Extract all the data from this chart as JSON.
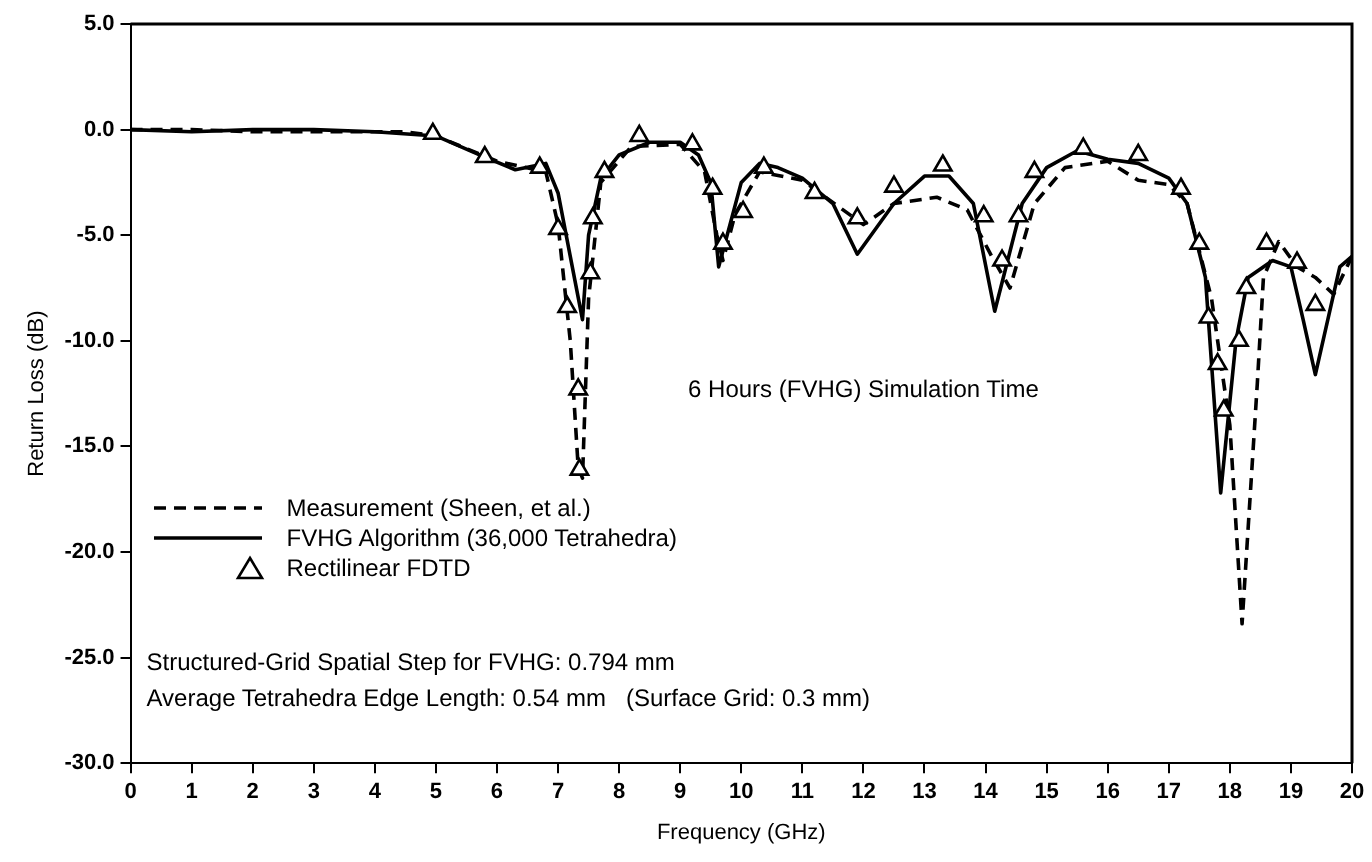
{
  "chart_data": {
    "type": "line",
    "xlabel": "Frequency (GHz)",
    "ylabel": "Return Loss (dB)",
    "xlim": [
      0,
      20
    ],
    "xticks": [
      0,
      1,
      2,
      3,
      4,
      5,
      6,
      7,
      8,
      9,
      10,
      11,
      12,
      13,
      14,
      15,
      16,
      17,
      18,
      19,
      20
    ],
    "ylim": [
      -30,
      5
    ],
    "yticks": [
      {
        "value": 5,
        "label": "5.0"
      },
      {
        "value": 0,
        "label": "0.0"
      },
      {
        "value": -5,
        "label": "-5.0"
      },
      {
        "value": -10,
        "label": "-10.0"
      },
      {
        "value": -15,
        "label": "-15.0"
      },
      {
        "value": -20,
        "label": "-20.0"
      },
      {
        "value": -25,
        "label": "-25.0"
      },
      {
        "value": -30,
        "label": "-30.0"
      }
    ],
    "grid": false,
    "legend": "bottom left",
    "series": [
      {
        "name": "Measurement (Sheen, et al.)",
        "type": "line",
        "line_style": "dashed",
        "marker": "none",
        "color": "#000000",
        "x": [
          0,
          1,
          2,
          3,
          4,
          4.5,
          5,
          6,
          6.8,
          7,
          7.2,
          7.33,
          7.4,
          7.5,
          7.7,
          8.2,
          9,
          9.4,
          9.6,
          9.7,
          9.9,
          10.3,
          11,
          12,
          12.5,
          13.2,
          13.7,
          14.1,
          14.4,
          14.8,
          15.3,
          16,
          16.5,
          17,
          17.3,
          17.7,
          18,
          18.2,
          18.45,
          18.55,
          18.8,
          19.1,
          19.4,
          19.7,
          20
        ],
        "values": [
          0,
          0,
          -0.1,
          -0.1,
          -0.1,
          -0.1,
          -0.3,
          -1.5,
          -2,
          -4.5,
          -10,
          -16,
          -16.5,
          -8,
          -2.5,
          -0.8,
          -0.7,
          -2,
          -5,
          -6.2,
          -4,
          -2,
          -2.4,
          -4.5,
          -3.5,
          -3.2,
          -3.8,
          -6,
          -7.5,
          -3.5,
          -1.8,
          -1.5,
          -2.4,
          -2.6,
          -3.5,
          -8,
          -14,
          -23.4,
          -12,
          -7,
          -5.3,
          -6.5,
          -7,
          -7.8,
          -6
        ]
      },
      {
        "name": "FVHG Algorithm (36,000 Tetrahedra)",
        "type": "line",
        "line_style": "solid",
        "marker": "none",
        "color": "#000000",
        "x": [
          0,
          1,
          2,
          3,
          4,
          5,
          5.8,
          6.3,
          6.8,
          7,
          7.2,
          7.4,
          7.5,
          7.7,
          8,
          8.5,
          9,
          9.3,
          9.5,
          9.63,
          10,
          10.3,
          10.6,
          11,
          11.5,
          11.9,
          12.5,
          13,
          13.4,
          13.8,
          14.15,
          14.6,
          15,
          15.5,
          16,
          16.5,
          17,
          17.3,
          17.6,
          17.85,
          18.1,
          18.3,
          18.7,
          19,
          19.2,
          19.4,
          19.8,
          20
        ],
        "values": [
          0,
          -0.1,
          0,
          0,
          -0.1,
          -0.3,
          -1.3,
          -1.9,
          -1.6,
          -3,
          -6,
          -9,
          -5,
          -2.3,
          -1.2,
          -0.6,
          -0.6,
          -1.2,
          -2.5,
          -6.5,
          -2.5,
          -1.6,
          -1.8,
          -2.3,
          -3.5,
          -5.9,
          -3.5,
          -2.2,
          -2.2,
          -3.5,
          -8.6,
          -3.5,
          -1.8,
          -1,
          -1.4,
          -1.6,
          -2.3,
          -3.5,
          -7,
          -17.2,
          -10,
          -7,
          -6.2,
          -6.5,
          -9,
          -11.6,
          -6.5,
          -6
        ]
      },
      {
        "name": "Rectilinear FDTD",
        "type": "scatter",
        "marker": "triangle",
        "color": "#000000",
        "x": [
          4.95,
          5.8,
          6.7,
          7.0,
          7.15,
          7.33,
          7.35,
          7.53,
          7.57,
          7.76,
          8.33,
          9.2,
          9.53,
          9.7,
          10.03,
          10.37,
          11.2,
          11.9,
          12.5,
          13.3,
          13.97,
          14.27,
          14.54,
          14.8,
          15.6,
          16.5,
          17.2,
          17.5,
          17.65,
          17.8,
          17.9,
          18.15,
          18.27,
          18.6,
          19.1,
          19.4
        ],
        "values": [
          -0.2,
          -1.3,
          -1.8,
          -4.7,
          -8.4,
          -12.3,
          -16.1,
          -6.8,
          -4.2,
          -2,
          -0.3,
          -0.7,
          -2.8,
          -5.4,
          -3.9,
          -1.8,
          -3,
          -4.2,
          -2.7,
          -1.7,
          -4.1,
          -6.2,
          -4.1,
          -2,
          -0.9,
          -1.2,
          -2.8,
          -5.4,
          -8.9,
          -11.1,
          -13.3,
          -10,
          -7.5,
          -5.4,
          -6.3,
          -8.3
        ]
      }
    ],
    "annotations": [
      "6 Hours (FVHG) Simulation Time",
      "Structured-Grid Spatial Step for FVHG: 0.794 mm",
      "Average Tetrahedra Edge Length: 0.54 mm   (Surface Grid: 0.3 mm)"
    ]
  }
}
